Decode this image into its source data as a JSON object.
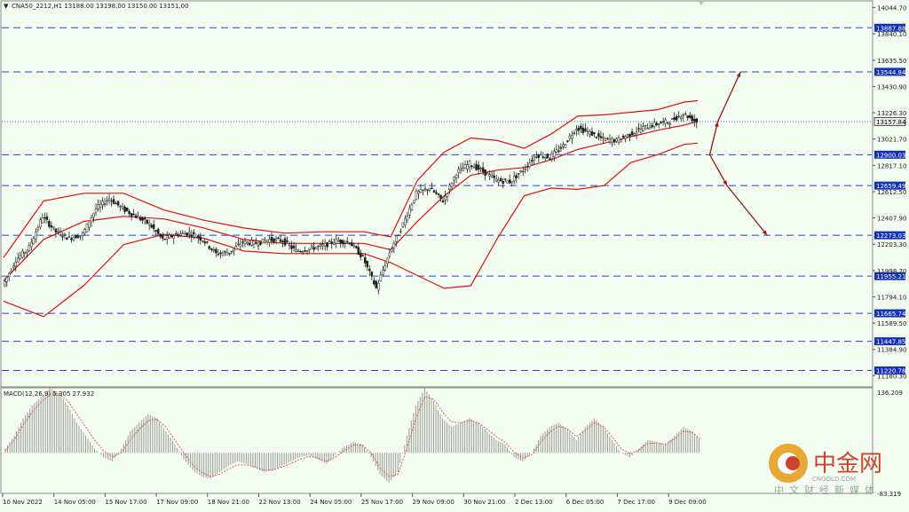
{
  "header": {
    "symbol_info": "CNA50_2212,H1  13188.00 13198.00 13150.00 13151.00",
    "menu_arrow": "▼"
  },
  "macd": {
    "label": "MACD(12,26,9) 5.305 27.932",
    "axis_top": "136.209",
    "axis_bottom": "-83.319"
  },
  "watermark": {
    "logo_text": "中金网",
    "url_text": "CNGOLD.COM",
    "sub_text": "中文财经新媒体"
  },
  "colors": {
    "background": "#f2fcf0",
    "level_line": "#2f3fd8",
    "level_label_bg": "#1432b8",
    "bollinger": "#e01010",
    "arrow": "#a01818",
    "candles": "#222222",
    "macd_bars": "#9a9a9a",
    "macd_signal": "#e05050"
  },
  "chart_data": {
    "type": "candlestick",
    "symbol": "CNA50_2212",
    "timeframe": "H1",
    "ohlc": {
      "open": 13188.0,
      "high": 13198.0,
      "low": 13150.0,
      "close": 13151.0
    },
    "ylim": [
      11100,
      14090
    ],
    "y_ticks": [
      "14044.70",
      "13840.10",
      "13635.50",
      "13430.90",
      "13226.30",
      "13021.70",
      "12817.10",
      "12612.50",
      "12407.90",
      "12203.30",
      "11998.70",
      "11794.10",
      "11589.50",
      "11384.90",
      "11180.30"
    ],
    "x_ticks": [
      "10 Nov 2022",
      "14 Nov 05:00",
      "15 Nov 17:00",
      "17 Nov 09:00",
      "18 Nov 21:00",
      "22 Nov 13:00",
      "24 Nov 05:00",
      "25 Nov 17:00",
      "29 Nov 09:00",
      "30 Nov 21:00",
      "2 Dec 13:00",
      "6 Dec 05:00",
      "7 Dec 17:00",
      "9 Dec 09:00"
    ],
    "levels": [
      13887.88,
      13544.84,
      12900.03,
      12659.49,
      12273.03,
      11955.21,
      11665.74,
      11447.85,
      11220.78
    ],
    "level_labels": [
      "13887.88",
      "13544.84",
      "12900.03",
      "12659.49",
      "12273.03",
      "11955.21",
      "11665.74",
      "11447.85",
      "11220.78"
    ],
    "current_price": 13157.84,
    "current_price_label": "13157.84",
    "close_path": [
      {
        "x": 0,
        "y": 11880
      },
      {
        "x": 1,
        "y": 12080
      },
      {
        "x": 2,
        "y": 12180
      },
      {
        "x": 3,
        "y": 12420
      },
      {
        "x": 4,
        "y": 12300
      },
      {
        "x": 5,
        "y": 12250
      },
      {
        "x": 6,
        "y": 12280
      },
      {
        "x": 7,
        "y": 12480
      },
      {
        "x": 8,
        "y": 12560
      },
      {
        "x": 9,
        "y": 12480
      },
      {
        "x": 10,
        "y": 12420
      },
      {
        "x": 11,
        "y": 12360
      },
      {
        "x": 12,
        "y": 12240
      },
      {
        "x": 13,
        "y": 12280
      },
      {
        "x": 14,
        "y": 12290
      },
      {
        "x": 15,
        "y": 12240
      },
      {
        "x": 16,
        "y": 12130
      },
      {
        "x": 17,
        "y": 12140
      },
      {
        "x": 18,
        "y": 12220
      },
      {
        "x": 19,
        "y": 12210
      },
      {
        "x": 20,
        "y": 12240
      },
      {
        "x": 21,
        "y": 12230
      },
      {
        "x": 22,
        "y": 12150
      },
      {
        "x": 23,
        "y": 12170
      },
      {
        "x": 24,
        "y": 12190
      },
      {
        "x": 25,
        "y": 12230
      },
      {
        "x": 26,
        "y": 12220
      },
      {
        "x": 27,
        "y": 12100
      },
      {
        "x": 28,
        "y": 11860
      },
      {
        "x": 29,
        "y": 12140
      },
      {
        "x": 30,
        "y": 12360
      },
      {
        "x": 31,
        "y": 12600
      },
      {
        "x": 32,
        "y": 12640
      },
      {
        "x": 33,
        "y": 12540
      },
      {
        "x": 34,
        "y": 12760
      },
      {
        "x": 35,
        "y": 12830
      },
      {
        "x": 36,
        "y": 12770
      },
      {
        "x": 37,
        "y": 12700
      },
      {
        "x": 38,
        "y": 12690
      },
      {
        "x": 39,
        "y": 12780
      },
      {
        "x": 40,
        "y": 12900
      },
      {
        "x": 41,
        "y": 12880
      },
      {
        "x": 42,
        "y": 12970
      },
      {
        "x": 43,
        "y": 13110
      },
      {
        "x": 44,
        "y": 13070
      },
      {
        "x": 45,
        "y": 13020
      },
      {
        "x": 46,
        "y": 13010
      },
      {
        "x": 47,
        "y": 13060
      },
      {
        "x": 48,
        "y": 13110
      },
      {
        "x": 49,
        "y": 13140
      },
      {
        "x": 50,
        "y": 13160
      },
      {
        "x": 51,
        "y": 13220
      },
      {
        "x": 52,
        "y": 13157
      }
    ],
    "bollinger": {
      "upper": [
        {
          "x": 0,
          "y": 12100
        },
        {
          "x": 3,
          "y": 12540
        },
        {
          "x": 6,
          "y": 12600
        },
        {
          "x": 9,
          "y": 12600
        },
        {
          "x": 12,
          "y": 12470
        },
        {
          "x": 15,
          "y": 12390
        },
        {
          "x": 18,
          "y": 12330
        },
        {
          "x": 21,
          "y": 12290
        },
        {
          "x": 24,
          "y": 12300
        },
        {
          "x": 27,
          "y": 12300
        },
        {
          "x": 29,
          "y": 12260
        },
        {
          "x": 31,
          "y": 12700
        },
        {
          "x": 33,
          "y": 12920
        },
        {
          "x": 35,
          "y": 13030
        },
        {
          "x": 37,
          "y": 13010
        },
        {
          "x": 39,
          "y": 12950
        },
        {
          "x": 41,
          "y": 13060
        },
        {
          "x": 43,
          "y": 13200
        },
        {
          "x": 45,
          "y": 13210
        },
        {
          "x": 47,
          "y": 13230
        },
        {
          "x": 49,
          "y": 13250
        },
        {
          "x": 51,
          "y": 13310
        },
        {
          "x": 52,
          "y": 13320
        }
      ],
      "middle": [
        {
          "x": 0,
          "y": 11920
        },
        {
          "x": 3,
          "y": 12240
        },
        {
          "x": 6,
          "y": 12380
        },
        {
          "x": 9,
          "y": 12420
        },
        {
          "x": 12,
          "y": 12400
        },
        {
          "x": 15,
          "y": 12330
        },
        {
          "x": 18,
          "y": 12240
        },
        {
          "x": 21,
          "y": 12210
        },
        {
          "x": 24,
          "y": 12210
        },
        {
          "x": 27,
          "y": 12210
        },
        {
          "x": 29,
          "y": 12160
        },
        {
          "x": 31,
          "y": 12380
        },
        {
          "x": 33,
          "y": 12580
        },
        {
          "x": 35,
          "y": 12740
        },
        {
          "x": 37,
          "y": 12780
        },
        {
          "x": 39,
          "y": 12800
        },
        {
          "x": 41,
          "y": 12860
        },
        {
          "x": 43,
          "y": 12940
        },
        {
          "x": 45,
          "y": 12990
        },
        {
          "x": 47,
          "y": 13040
        },
        {
          "x": 49,
          "y": 13090
        },
        {
          "x": 51,
          "y": 13130
        },
        {
          "x": 52,
          "y": 13160
        }
      ],
      "lower": [
        {
          "x": 0,
          "y": 11760
        },
        {
          "x": 3,
          "y": 11640
        },
        {
          "x": 6,
          "y": 11880
        },
        {
          "x": 9,
          "y": 12200
        },
        {
          "x": 12,
          "y": 12280
        },
        {
          "x": 15,
          "y": 12250
        },
        {
          "x": 18,
          "y": 12150
        },
        {
          "x": 21,
          "y": 12130
        },
        {
          "x": 24,
          "y": 12130
        },
        {
          "x": 27,
          "y": 12130
        },
        {
          "x": 29,
          "y": 12060
        },
        {
          "x": 31,
          "y": 11960
        },
        {
          "x": 33,
          "y": 11860
        },
        {
          "x": 35,
          "y": 11880
        },
        {
          "x": 37,
          "y": 12250
        },
        {
          "x": 39,
          "y": 12580
        },
        {
          "x": 41,
          "y": 12640
        },
        {
          "x": 43,
          "y": 12630
        },
        {
          "x": 45,
          "y": 12660
        },
        {
          "x": 47,
          "y": 12840
        },
        {
          "x": 49,
          "y": 12900
        },
        {
          "x": 51,
          "y": 12980
        },
        {
          "x": 52,
          "y": 12990
        }
      ]
    },
    "projection_arrows": [
      {
        "from": {
          "x": 52.9,
          "y": 12900
        },
        "via": {
          "x": 53.5,
          "y": 13157
        },
        "to": {
          "x": 55.2,
          "y": 13544
        }
      },
      {
        "from": {
          "x": 52.9,
          "y": 12900
        },
        "via": {
          "x": 54.2,
          "y": 12659
        },
        "to": {
          "x": 57.2,
          "y": 12273
        }
      }
    ],
    "macd": {
      "ylim": [
        -90,
        145
      ],
      "histogram": [
        10,
        40,
        80,
        110,
        130,
        150,
        140,
        110,
        70,
        40,
        10,
        -10,
        -20,
        10,
        50,
        70,
        90,
        80,
        50,
        20,
        -15,
        -40,
        -55,
        -60,
        -45,
        -30,
        -20,
        -25,
        -35,
        -45,
        -40,
        -30,
        -20,
        -10,
        -5,
        -15,
        -25,
        -5,
        15,
        25,
        20,
        -10,
        -50,
        -70,
        -45,
        40,
        110,
        150,
        120,
        80,
        60,
        70,
        80,
        70,
        50,
        30,
        20,
        -10,
        -20,
        0,
        40,
        60,
        70,
        55,
        30,
        60,
        80,
        60,
        30,
        0,
        -10,
        10,
        30,
        25,
        20,
        40,
        60,
        50,
        25
      ],
      "signal": [
        5,
        30,
        65,
        95,
        118,
        135,
        138,
        120,
        90,
        60,
        30,
        5,
        -10,
        0,
        30,
        55,
        75,
        78,
        60,
        30,
        0,
        -28,
        -45,
        -55,
        -50,
        -38,
        -28,
        -28,
        -33,
        -40,
        -40,
        -33,
        -25,
        -15,
        -8,
        -12,
        -20,
        -10,
        5,
        18,
        18,
        0,
        -35,
        -55,
        -50,
        10,
        80,
        130,
        125,
        95,
        72,
        70,
        76,
        70,
        55,
        38,
        25,
        2,
        -12,
        -5,
        25,
        48,
        62,
        56,
        38,
        52,
        70,
        62,
        38,
        10,
        -2,
        6,
        22,
        23,
        20,
        32,
        50,
        48,
        30
      ]
    }
  }
}
